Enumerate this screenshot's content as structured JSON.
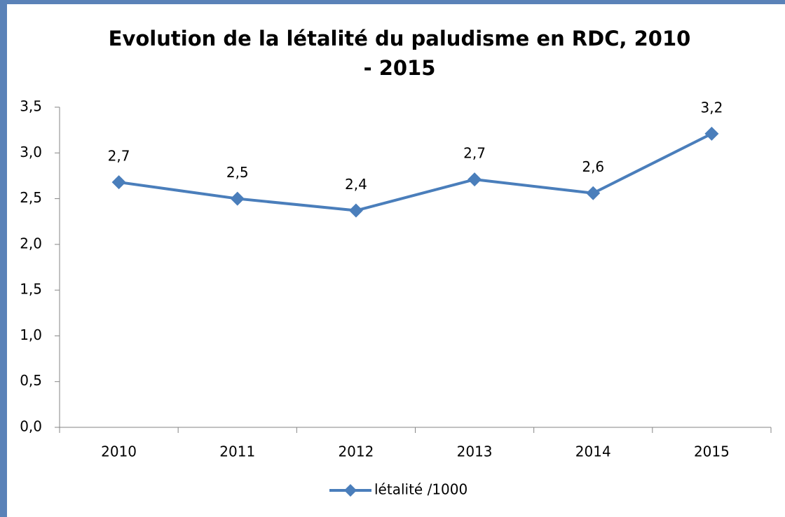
{
  "chart_data": {
    "type": "line",
    "title": "Evolution de la létalité du paludisme en RDC,  2010 - 2015",
    "categories": [
      "2010",
      "2011",
      "2012",
      "2013",
      "2014",
      "2015"
    ],
    "series": [
      {
        "name": "létalité /1000",
        "color": "#4a7ebb",
        "values": [
          2.68,
          2.5,
          2.37,
          2.71,
          2.56,
          3.21
        ],
        "value_labels": [
          "2,7",
          "2,5",
          "2,4",
          "2,7",
          "2,6",
          "3,2"
        ]
      }
    ],
    "ylim": [
      0,
      3.5
    ],
    "yticks": [
      {
        "value": 0,
        "label": "0,0"
      },
      {
        "value": 0.5,
        "label": "0,5"
      },
      {
        "value": 1,
        "label": "1,0"
      },
      {
        "value": 1.5,
        "label": "1,5"
      },
      {
        "value": 2,
        "label": "2,0"
      },
      {
        "value": 2.5,
        "label": "2,5"
      },
      {
        "value": 3,
        "label": "3,0"
      },
      {
        "value": 3.5,
        "label": "3,5"
      }
    ],
    "legend": "bottom"
  }
}
